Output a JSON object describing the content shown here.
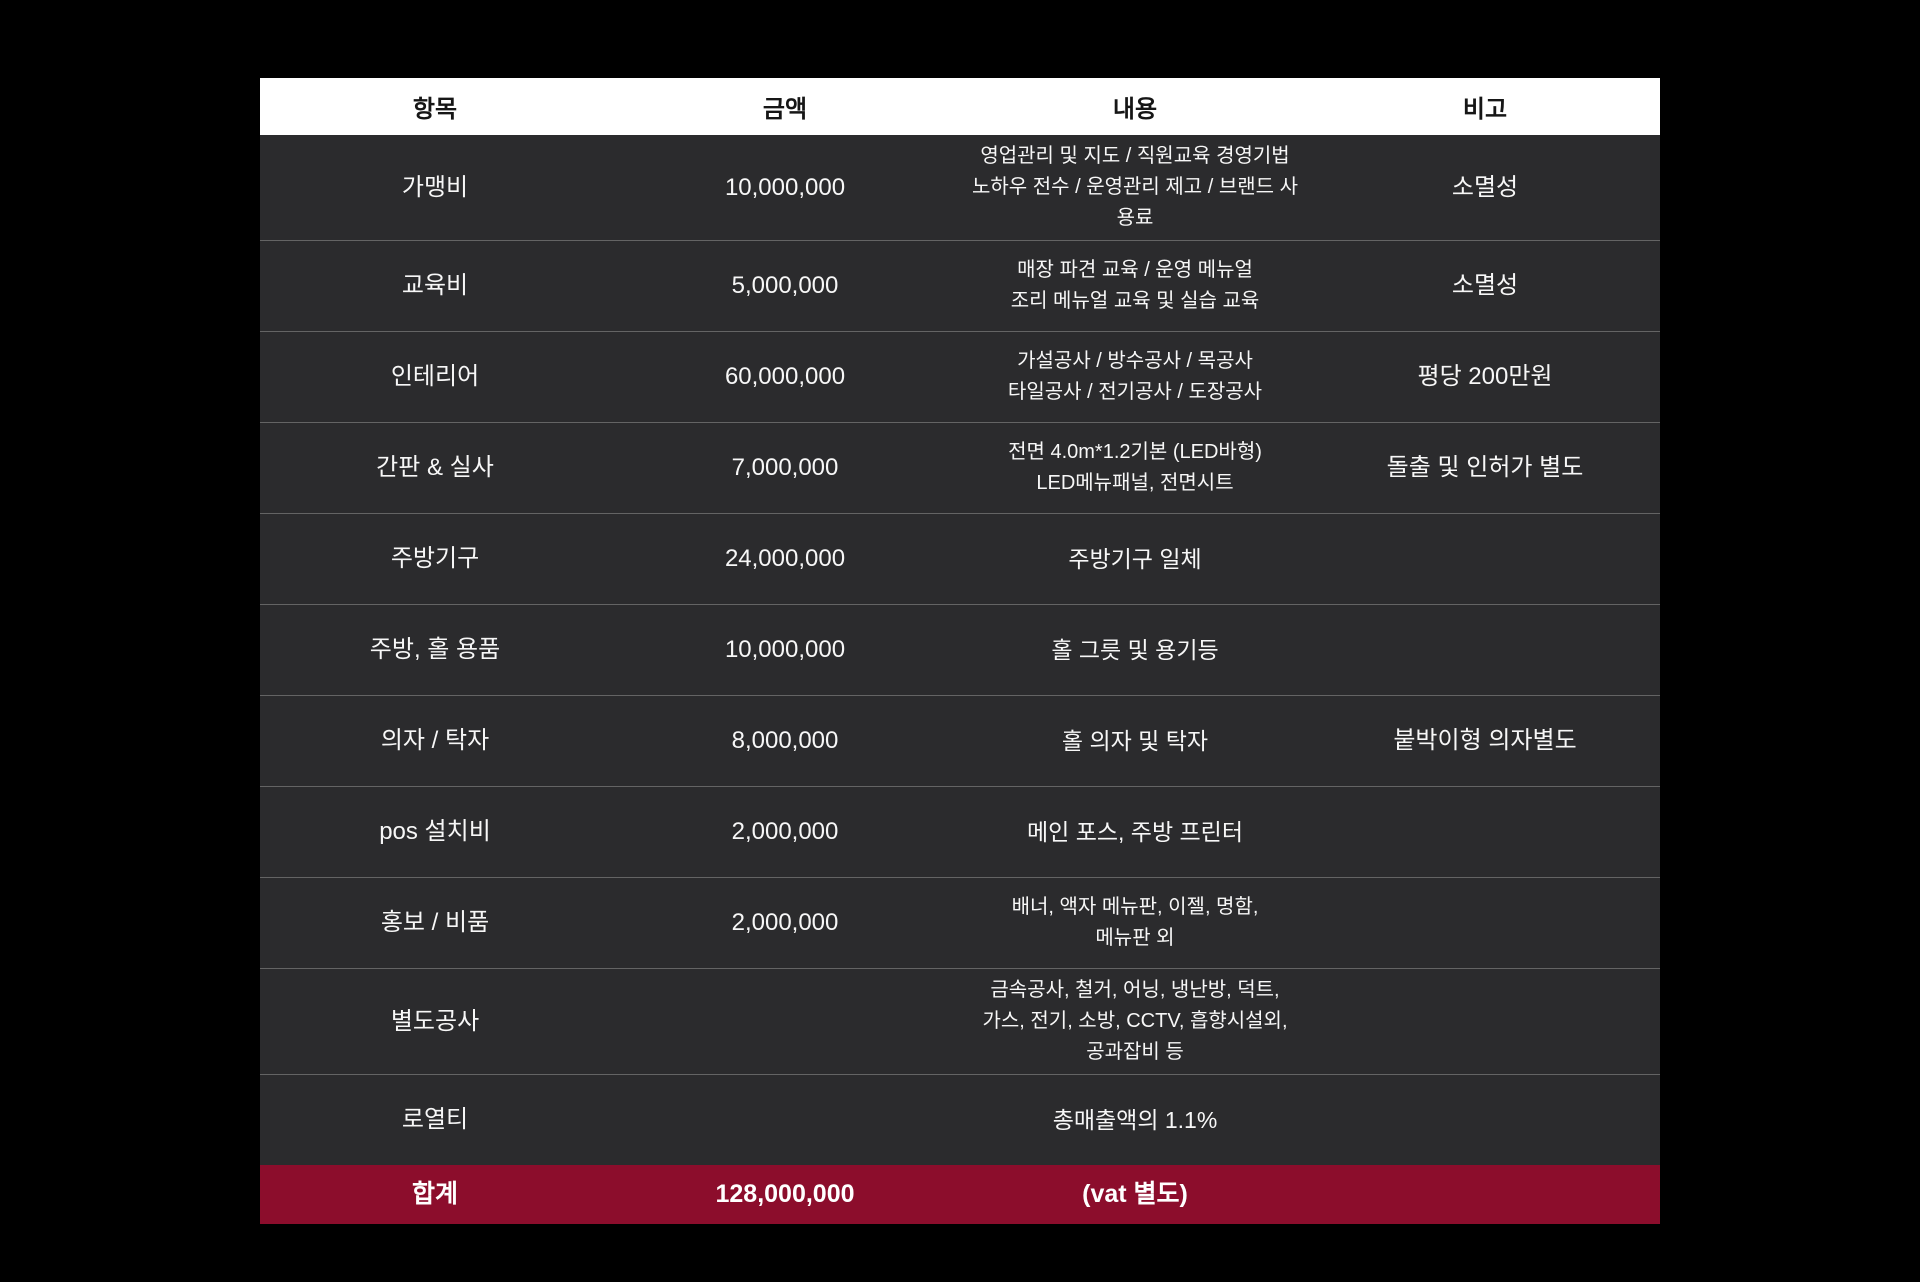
{
  "colors": {
    "page_background": "#000000",
    "header_background": "#ffffff",
    "header_text": "#161616",
    "row_background": "#2b2b2d",
    "row_divider": "#646464",
    "body_text": "#f7f7f7",
    "total_row_background": "#8c0d2c",
    "total_row_text": "#ffffff"
  },
  "chart_data": {
    "type": "table",
    "columns": [
      "항목",
      "금액",
      "내용",
      "비고"
    ],
    "rows": [
      {
        "item": "가맹비",
        "amount": "10,000,000",
        "content": [
          "영업관리 및 지도 / 직원교육 경영기법",
          "노하우 전수 / 운영관리 제고 / 브랜드 사용료"
        ],
        "note": "소멸성"
      },
      {
        "item": "교육비",
        "amount": "5,000,000",
        "content": [
          "매장 파견 교육 / 운영 메뉴얼",
          "조리 메뉴얼 교육 및 실습 교육"
        ],
        "note": "소멸성"
      },
      {
        "item": "인테리어",
        "amount": "60,000,000",
        "content": [
          "가설공사 / 방수공사 / 목공사",
          "타일공사 / 전기공사 / 도장공사"
        ],
        "note": "평당 200만원"
      },
      {
        "item": "간판 & 실사",
        "amount": "7,000,000",
        "content": [
          "전면 4.0m*1.2기본 (LED바형)",
          "LED메뉴패널, 전면시트"
        ],
        "note": "돌출 및 인허가 별도"
      },
      {
        "item": "주방기구",
        "amount": "24,000,000",
        "content": [
          "주방기구 일체"
        ],
        "note": ""
      },
      {
        "item": "주방, 홀 용품",
        "amount": "10,000,000",
        "content": [
          "홀 그릇 및 용기등"
        ],
        "note": ""
      },
      {
        "item": "의자 / 탁자",
        "amount": "8,000,000",
        "content": [
          "홀 의자 및 탁자"
        ],
        "note": "붙박이형 의자별도"
      },
      {
        "item": "pos 설치비",
        "amount": "2,000,000",
        "content": [
          "메인 포스, 주방 프린터"
        ],
        "note": ""
      },
      {
        "item": "홍보 / 비품",
        "amount": "2,000,000",
        "content": [
          "배너, 액자 메뉴판, 이젤, 명함,",
          "메뉴판 외"
        ],
        "note": ""
      },
      {
        "item": "별도공사",
        "amount": "",
        "content": [
          "금속공사, 철거, 어닝, 냉난방, 덕트,",
          "가스, 전기, 소방, CCTV, 흡향시설외,",
          "공과잡비 등"
        ],
        "note": ""
      },
      {
        "item": "로열티",
        "amount": "",
        "content": [
          "총매출액의 1.1%"
        ],
        "note": ""
      }
    ],
    "total_row": {
      "item": "합계",
      "amount": "128,000,000",
      "content": [
        "(vat 별도)"
      ],
      "note": ""
    }
  }
}
